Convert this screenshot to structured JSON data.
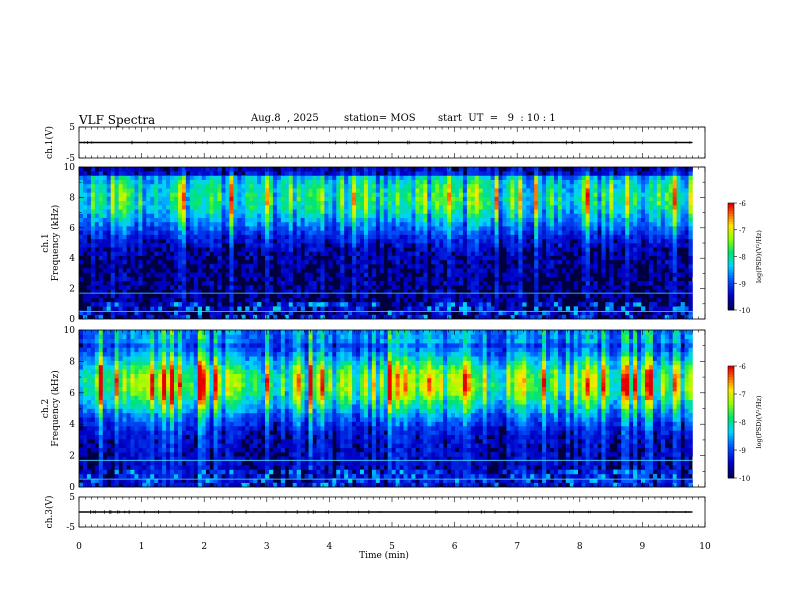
{
  "header": {
    "title": "VLF Spectra",
    "date": "Aug.8  , 2025",
    "station": "station= MOS",
    "start_ut": "start  UT  =   9  : 10 : 1"
  },
  "chart_data": [
    {
      "type": "line",
      "name": "ch1-waveform",
      "ylabel": "ch.1(V)",
      "ylim": [
        -5,
        5
      ],
      "yticks": [
        "5",
        "-5"
      ],
      "xlim": [
        0,
        10
      ],
      "series_level": 0,
      "data_end_min": 9.8
    },
    {
      "type": "heatmap",
      "name": "ch1-spectrogram",
      "ylabel": "ch.1\nFrequency (kHz)",
      "ylim": [
        0,
        10
      ],
      "yticks": [
        "0",
        "2",
        "4",
        "6",
        "8",
        "10"
      ],
      "xlim": [
        0,
        10
      ],
      "data_end_min": 9.8,
      "colorbar": {
        "label": "log(PSD)(V²/Hz)",
        "min": -10,
        "max": -6,
        "ticks": [
          "-6",
          "-7",
          "-8",
          "-9",
          "-10"
        ]
      },
      "lines_kHz": [
        0.5,
        1.7
      ]
    },
    {
      "type": "heatmap",
      "name": "ch2-spectrogram",
      "ylabel": "ch.2\nFrequency (kHz)",
      "ylim": [
        0,
        10
      ],
      "yticks": [
        "0",
        "2",
        "4",
        "6",
        "8",
        "10"
      ],
      "xlim": [
        0,
        10
      ],
      "data_end_min": 9.8,
      "colorbar": {
        "label": "log(PSD)(V²/Hz)",
        "min": -10,
        "max": -6,
        "ticks": [
          "-6",
          "-7",
          "-8",
          "-9",
          "-10"
        ]
      },
      "lines_kHz": [
        0.5,
        1.7
      ]
    },
    {
      "type": "line",
      "name": "ch3-waveform",
      "ylabel": "ch.3(V)",
      "ylim": [
        -5,
        5
      ],
      "yticks": [
        "5",
        "-5"
      ],
      "xlim": [
        0,
        10
      ],
      "series_level": 0,
      "data_end_min": 9.8
    }
  ],
  "xaxis": {
    "label": "Time  (min)",
    "ticks": [
      "0",
      "1",
      "2",
      "3",
      "4",
      "5",
      "6",
      "7",
      "8",
      "9",
      "10"
    ]
  },
  "colors": {
    "background": "#000040",
    "trace": "#000000"
  }
}
